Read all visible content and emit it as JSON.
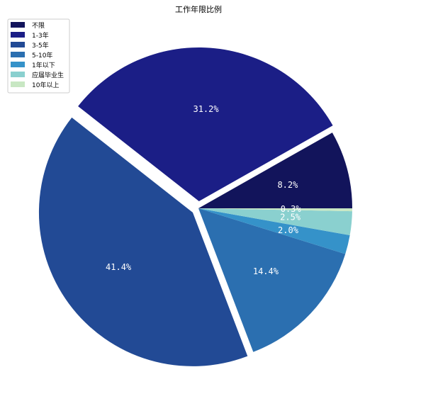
{
  "chart_data": {
    "type": "pie",
    "title": "工作年限比例",
    "legend_position": "top-left",
    "slices": [
      {
        "label": "不限",
        "value": 8.2,
        "pct_label": "8.2%",
        "color": "#12145b",
        "explode": 0
      },
      {
        "label": "1-3年",
        "value": 31.2,
        "pct_label": "31.2%",
        "color": "#1b1e86",
        "explode": 1
      },
      {
        "label": "3-5年",
        "value": 41.4,
        "pct_label": "41.4%",
        "color": "#224a95",
        "explode": 1
      },
      {
        "label": "5-10年",
        "value": 14.4,
        "pct_label": "14.4%",
        "color": "#2b6fb0",
        "explode": 0
      },
      {
        "label": "1年以下",
        "value": 2.0,
        "pct_label": "2.0%",
        "color": "#3592c9",
        "explode": 0
      },
      {
        "label": "应届毕业生",
        "value": 2.5,
        "pct_label": "2.5%",
        "color": "#8ad0cf",
        "explode": 0
      },
      {
        "label": "10年以上",
        "value": 0.3,
        "pct_label": "0.3%",
        "color": "#c8e7c3",
        "explode": 0
      }
    ]
  }
}
